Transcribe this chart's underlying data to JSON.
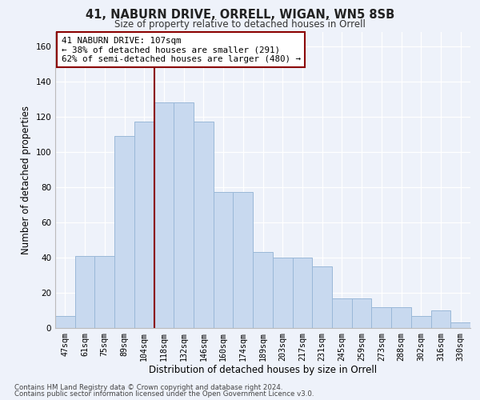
{
  "title1": "41, NABURN DRIVE, ORRELL, WIGAN, WN5 8SB",
  "title2": "Size of property relative to detached houses in Orrell",
  "xlabel": "Distribution of detached houses by size in Orrell",
  "ylabel": "Number of detached properties",
  "categories": [
    "47sqm",
    "61sqm",
    "75sqm",
    "89sqm",
    "104sqm",
    "118sqm",
    "132sqm",
    "146sqm",
    "160sqm",
    "174sqm",
    "189sqm",
    "203sqm",
    "217sqm",
    "231sqm",
    "245sqm",
    "259sqm",
    "273sqm",
    "288sqm",
    "302sqm",
    "316sqm",
    "330sqm"
  ],
  "values": [
    7,
    41,
    41,
    109,
    117,
    128,
    128,
    117,
    77,
    77,
    43,
    40,
    40,
    35,
    17,
    17,
    12,
    12,
    7,
    10,
    3
  ],
  "bar_color": "#c8d9ef",
  "bar_edge_color": "#9ab8d8",
  "vline_x_index": 4.5,
  "vline_color": "#8b0000",
  "annotation_text": "41 NABURN DRIVE: 107sqm\n← 38% of detached houses are smaller (291)\n62% of semi-detached houses are larger (480) →",
  "annotation_box_color": "#ffffff",
  "annotation_box_edge": "#8b0000",
  "ylim": [
    0,
    168
  ],
  "yticks": [
    0,
    20,
    40,
    60,
    80,
    100,
    120,
    140,
    160
  ],
  "footer1": "Contains HM Land Registry data © Crown copyright and database right 2024.",
  "footer2": "Contains public sector information licensed under the Open Government Licence v3.0.",
  "bg_color": "#eef2fa",
  "plot_bg_color": "#eef2fa"
}
